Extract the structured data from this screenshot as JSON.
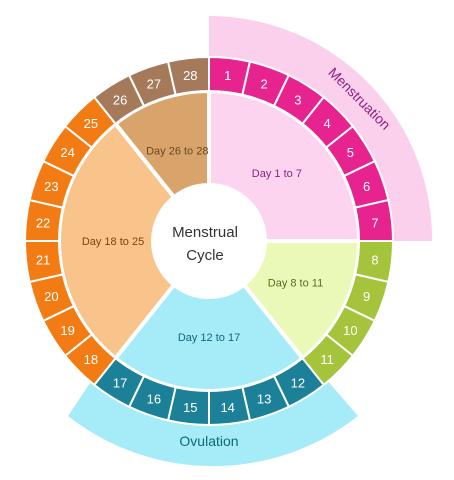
{
  "center": {
    "line1": "Menstrual",
    "line2": "Cycle"
  },
  "bands": {
    "menstruation": {
      "label": "Menstruation",
      "color": "#fbd0ec",
      "text_color": "#8a2580"
    },
    "ovulation": {
      "label": "Ovulation",
      "color": "#a6ecf8",
      "text_color": "#11677a"
    }
  },
  "phases": [
    {
      "id": "p1",
      "label": "Day 1 to 7",
      "inner_color": "#fcd4ef",
      "ring_color": "#e6238f",
      "text_color": "#8a2580",
      "day_from": 1,
      "day_to": 7
    },
    {
      "id": "p2",
      "label": "Day 8 to 11",
      "inner_color": "#eaf9b8",
      "ring_color": "#a3c43b",
      "text_color": "#5c6a1c",
      "day_from": 8,
      "day_to": 11
    },
    {
      "id": "p3",
      "label": "Day 12 to 17",
      "inner_color": "#a6ecf8",
      "ring_color": "#1b8098",
      "text_color": "#11677a",
      "day_from": 12,
      "day_to": 17
    },
    {
      "id": "p4",
      "label": "Day 18 to 25",
      "inner_color": "#f9c38c",
      "ring_color": "#f27c13",
      "text_color": "#7a4415",
      "day_from": 18,
      "day_to": 25
    },
    {
      "id": "p5",
      "label": "Day 26 to 28",
      "inner_color": "#d9a46c",
      "ring_color": "#a47a5a",
      "text_color": "#6c4520",
      "day_from": 26,
      "day_to": 28
    }
  ],
  "days": [
    "1",
    "2",
    "3",
    "4",
    "5",
    "6",
    "7",
    "8",
    "9",
    "10",
    "11",
    "12",
    "13",
    "14",
    "15",
    "16",
    "17",
    "18",
    "19",
    "20",
    "21",
    "22",
    "23",
    "24",
    "25",
    "26",
    "27",
    "28"
  ]
}
